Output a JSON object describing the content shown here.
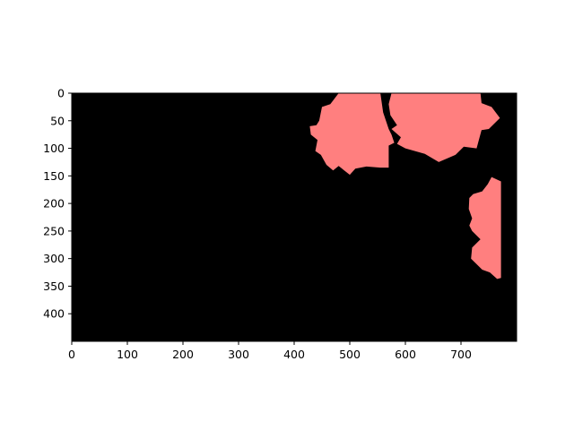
{
  "chart_data": {
    "type": "heatmap",
    "title": "",
    "xlabel": "",
    "ylabel": "",
    "xlim": [
      0,
      800
    ],
    "ylim": [
      450,
      0
    ],
    "grid": false,
    "legend": "none",
    "xticks": [
      0,
      100,
      200,
      300,
      400,
      500,
      600,
      700
    ],
    "yticks": [
      0,
      50,
      100,
      150,
      200,
      250,
      300,
      350,
      400
    ],
    "colors": {
      "background": "#000000",
      "region": "#ff7f7f"
    },
    "regions": [
      {
        "points": [
          [
            480,
            0
          ],
          [
            555,
            0
          ],
          [
            560,
            35
          ],
          [
            565,
            50
          ],
          [
            570,
            65
          ],
          [
            575,
            75
          ],
          [
            580,
            90
          ],
          [
            570,
            95
          ],
          [
            570,
            110
          ],
          [
            570,
            135
          ],
          [
            555,
            135
          ],
          [
            530,
            133
          ],
          [
            510,
            137
          ],
          [
            500,
            148
          ],
          [
            490,
            140
          ],
          [
            480,
            132
          ],
          [
            470,
            140
          ],
          [
            458,
            130
          ],
          [
            448,
            112
          ],
          [
            438,
            105
          ],
          [
            442,
            85
          ],
          [
            430,
            75
          ],
          [
            428,
            60
          ],
          [
            440,
            58
          ],
          [
            445,
            50
          ],
          [
            450,
            25
          ],
          [
            465,
            20
          ]
        ]
      },
      {
        "points": [
          [
            575,
            0
          ],
          [
            735,
            0
          ],
          [
            737,
            18
          ],
          [
            755,
            25
          ],
          [
            770,
            45
          ],
          [
            750,
            65
          ],
          [
            737,
            67
          ],
          [
            728,
            100
          ],
          [
            705,
            97
          ],
          [
            690,
            112
          ],
          [
            660,
            125
          ],
          [
            635,
            110
          ],
          [
            600,
            100
          ],
          [
            585,
            92
          ],
          [
            592,
            80
          ],
          [
            575,
            65
          ],
          [
            585,
            58
          ],
          [
            573,
            40
          ],
          [
            570,
            20
          ]
        ]
      },
      {
        "points": [
          [
            755,
            152
          ],
          [
            772,
            160
          ],
          [
            772,
            335
          ],
          [
            765,
            337
          ],
          [
            752,
            325
          ],
          [
            738,
            320
          ],
          [
            718,
            300
          ],
          [
            720,
            280
          ],
          [
            735,
            265
          ],
          [
            720,
            250
          ],
          [
            715,
            240
          ],
          [
            720,
            227
          ],
          [
            714,
            210
          ],
          [
            715,
            190
          ],
          [
            722,
            183
          ],
          [
            738,
            178
          ],
          [
            748,
            165
          ]
        ]
      }
    ]
  }
}
